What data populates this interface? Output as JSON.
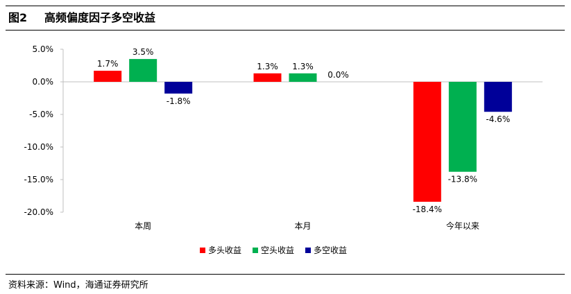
{
  "header": {
    "figure_number": "图2",
    "title": "高频偏度因子多空收益"
  },
  "footer": {
    "source": "资料来源：Wind，海通证券研究所"
  },
  "chart_data": {
    "type": "bar",
    "categories": [
      "本周",
      "本月",
      "今年以来"
    ],
    "series": [
      {
        "name": "多头收益",
        "color": "#ff0000",
        "values": [
          1.7,
          1.3,
          -18.4
        ],
        "labels": [
          "1.7%",
          "1.3%",
          "-18.4%"
        ]
      },
      {
        "name": "空头收益",
        "color": "#00b050",
        "values": [
          3.5,
          1.3,
          -13.8
        ],
        "labels": [
          "3.5%",
          "1.3%",
          "-13.8%"
        ]
      },
      {
        "name": "多空收益",
        "color": "#000099",
        "values": [
          -1.8,
          0.0,
          -4.6
        ],
        "labels": [
          "-1.8%",
          "0.0%",
          "-4.6%"
        ]
      }
    ],
    "yticks": [
      5,
      0,
      -5,
      -10,
      -15,
      -20
    ],
    "ytick_labels": [
      "5.0%",
      "0.0%",
      "-5.0%",
      "-10.0%",
      "-15.0%",
      "-20.0%"
    ],
    "ylim": [
      -20,
      5
    ],
    "legend_position": "bottom",
    "grid": false
  }
}
